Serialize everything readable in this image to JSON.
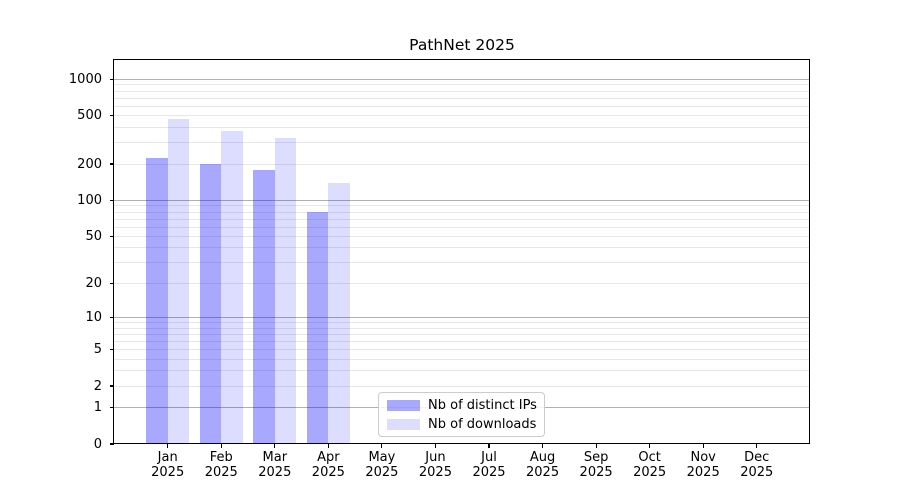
{
  "title": "PathNet 2025",
  "legend": {
    "items": [
      {
        "label": "Nb of distinct IPs"
      },
      {
        "label": "Nb of downloads"
      }
    ]
  },
  "colors": {
    "series_ips": "rgba(0,0,255,0.34)",
    "series_downloads": "rgba(0,0,255,0.135)",
    "grid_major": "#b0b0b0",
    "grid_minor": "#e7e7e7",
    "axis": "#000000"
  },
  "chart_data": {
    "type": "bar",
    "title": "PathNet 2025",
    "categories": [
      "Jan 2025",
      "Feb 2025",
      "Mar 2025",
      "Apr 2025",
      "May 2025",
      "Jun 2025",
      "Jul 2025",
      "Aug 2025",
      "Sep 2025",
      "Oct 2025",
      "Nov 2025",
      "Dec 2025"
    ],
    "series": [
      {
        "name": "Nb of distinct IPs",
        "color": "rgba(0,0,255,0.34)",
        "values": [
          225,
          200,
          178,
          80,
          null,
          null,
          null,
          null,
          null,
          null,
          null,
          null
        ]
      },
      {
        "name": "Nb of downloads",
        "color": "rgba(0,0,255,0.135)",
        "values": [
          470,
          375,
          330,
          140,
          null,
          null,
          null,
          null,
          null,
          null,
          null,
          null
        ]
      }
    ],
    "xlabel": "",
    "ylabel": "",
    "y_scale": "log1p (symlog-like)",
    "y_ticks": [
      0,
      1,
      2,
      5,
      10,
      20,
      50,
      100,
      200,
      500,
      1000
    ],
    "ylim": [
      0,
      1450
    ],
    "grid": "both",
    "legend_position": "lower center"
  }
}
